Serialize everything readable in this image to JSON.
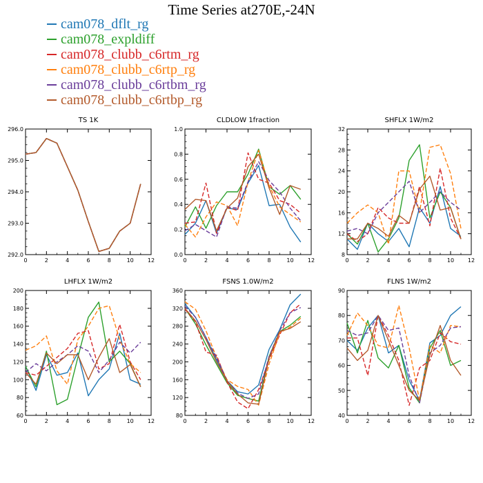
{
  "title": "Time Series at270E,-24N",
  "series_info": [
    {
      "name": "cam078_dflt_rg",
      "color": "#1f77b4"
    },
    {
      "name": "cam078_expldiff",
      "color": "#2ca02c"
    },
    {
      "name": "cam078_clubb_c6rtm_rg",
      "color": "#d62728",
      "dash": true
    },
    {
      "name": "cam078_clubb_c6rtp_rg",
      "color": "#ff7f0e",
      "dash": true
    },
    {
      "name": "cam078_clubb_c6rtbm_rg",
      "color": "#6a3d9a",
      "dash": true
    },
    {
      "name": "cam078_clubb_c6rtbp_rg",
      "color": "#b35a2b"
    }
  ],
  "chart_data": [
    {
      "type": "line",
      "title": "TS   1K",
      "x": [
        0,
        1,
        2,
        3,
        4,
        5,
        6,
        7,
        8,
        9,
        10,
        11
      ],
      "xlim": [
        0,
        12
      ],
      "xticks": [
        0,
        2,
        4,
        6,
        8,
        10,
        12
      ],
      "ylim": [
        292.0,
        296.0
      ],
      "yticks": [
        292.0,
        293.0,
        294.0,
        295.0,
        296.0
      ],
      "ytick_labels": [
        "292.0",
        "293.0",
        "294.0",
        "295.0",
        "296.0"
      ],
      "series": [
        {
          "name": "cam078_dflt_rg",
          "values": [
            295.2,
            295.25,
            295.7,
            295.55,
            294.8,
            294.05,
            293.05,
            292.1,
            292.2,
            292.75,
            293.0,
            294.25
          ]
        },
        {
          "name": "cam078_expldiff",
          "values": [
            295.2,
            295.25,
            295.7,
            295.55,
            294.8,
            294.05,
            293.05,
            292.1,
            292.2,
            292.75,
            293.0,
            294.25
          ]
        },
        {
          "name": "cam078_clubb_c6rtm_rg",
          "values": [
            295.2,
            295.25,
            295.7,
            295.55,
            294.8,
            294.05,
            293.05,
            292.1,
            292.2,
            292.75,
            293.0,
            294.25
          ]
        },
        {
          "name": "cam078_clubb_c6rtp_rg",
          "values": [
            295.2,
            295.25,
            295.7,
            295.55,
            294.8,
            294.05,
            293.05,
            292.1,
            292.2,
            292.75,
            293.0,
            294.25
          ]
        },
        {
          "name": "cam078_clubb_c6rtbm_rg",
          "values": [
            295.2,
            295.25,
            295.7,
            295.55,
            294.8,
            294.05,
            293.05,
            292.1,
            292.2,
            292.75,
            293.0,
            294.25
          ]
        },
        {
          "name": "cam078_clubb_c6rtbp_rg",
          "values": [
            295.2,
            295.25,
            295.7,
            295.55,
            294.8,
            294.05,
            293.05,
            292.1,
            292.2,
            292.75,
            293.0,
            294.25
          ]
        }
      ]
    },
    {
      "type": "line",
      "title": "CLDLOW   1fraction",
      "x": [
        0,
        1,
        2,
        3,
        4,
        5,
        6,
        7,
        8,
        9,
        10,
        11
      ],
      "xlim": [
        0,
        12
      ],
      "xticks": [
        0,
        2,
        4,
        6,
        8,
        10,
        12
      ],
      "ylim": [
        0.0,
        1.0
      ],
      "yticks": [
        0.0,
        0.2,
        0.4,
        0.6,
        0.8,
        1.0
      ],
      "ytick_labels": [
        "0.0",
        "0.2",
        "0.4",
        "0.6",
        "0.8",
        "1.0"
      ],
      "series": [
        {
          "name": "cam078_dflt_rg",
          "values": [
            0.16,
            0.25,
            0.43,
            0.17,
            0.37,
            0.36,
            0.57,
            0.71,
            0.39,
            0.4,
            0.22,
            0.1
          ]
        },
        {
          "name": "cam078_expldiff",
          "values": [
            0.22,
            0.38,
            0.21,
            0.39,
            0.5,
            0.5,
            0.64,
            0.84,
            0.54,
            0.48,
            0.55,
            0.44
          ]
        },
        {
          "name": "cam078_clubb_c6rtm_rg",
          "values": [
            0.25,
            0.26,
            0.57,
            0.17,
            0.38,
            0.35,
            0.81,
            0.6,
            0.57,
            0.43,
            0.4,
            0.33
          ]
        },
        {
          "name": "cam078_clubb_c6rtp_rg",
          "values": [
            0.24,
            0.14,
            0.3,
            0.42,
            0.39,
            0.23,
            0.58,
            0.83,
            0.55,
            0.38,
            0.32,
            0.26
          ]
        },
        {
          "name": "cam078_clubb_c6rtbm_rg",
          "values": [
            0.19,
            0.24,
            0.19,
            0.14,
            0.38,
            0.37,
            0.58,
            0.74,
            0.59,
            0.5,
            0.37,
            0.27
          ]
        },
        {
          "name": "cam078_clubb_c6rtbp_rg",
          "values": [
            0.36,
            0.44,
            0.43,
            0.19,
            0.37,
            0.45,
            0.7,
            0.8,
            0.53,
            0.32,
            0.55,
            0.52
          ]
        }
      ]
    },
    {
      "type": "line",
      "title": "SHFLX   1W/m2",
      "x": [
        0,
        1,
        2,
        3,
        4,
        5,
        6,
        7,
        8,
        9,
        10,
        11
      ],
      "xlim": [
        0,
        12
      ],
      "xticks": [
        0,
        2,
        4,
        6,
        8,
        10,
        12
      ],
      "ylim": [
        8,
        32
      ],
      "yticks": [
        8,
        12,
        16,
        20,
        24,
        28,
        32
      ],
      "ytick_labels": [
        "8",
        "12",
        "16",
        "20",
        "24",
        "28",
        "32"
      ],
      "series": [
        {
          "name": "cam078_dflt_rg",
          "values": [
            11,
            9,
            14,
            12,
            10.5,
            13,
            9.5,
            17,
            14,
            21,
            13,
            11.5
          ]
        },
        {
          "name": "cam078_expldiff",
          "values": [
            12,
            10,
            14,
            8.5,
            11,
            15,
            26,
            29,
            15,
            20,
            17,
            11
          ]
        },
        {
          "name": "cam078_clubb_c6rtm_rg",
          "values": [
            12,
            10.5,
            12,
            17,
            15,
            14,
            14,
            21,
            13.5,
            24.5,
            15,
            11
          ]
        },
        {
          "name": "cam078_clubb_c6rtp_rg",
          "values": [
            14,
            16,
            17.5,
            16,
            10,
            24,
            24,
            16,
            28.5,
            29,
            23.5,
            13
          ]
        },
        {
          "name": "cam078_clubb_c6rtbm_rg",
          "values": [
            12.5,
            13,
            12,
            16,
            18,
            20,
            22,
            16,
            18,
            20,
            18,
            16.5
          ]
        },
        {
          "name": "cam078_clubb_c6rtbp_rg",
          "values": [
            11,
            11,
            14,
            13,
            11.5,
            15.5,
            14,
            20.5,
            23,
            16.5,
            17,
            11
          ]
        }
      ]
    },
    {
      "type": "line",
      "title": "LHFLX   1W/m2",
      "x": [
        0,
        1,
        2,
        3,
        4,
        5,
        6,
        7,
        8,
        9,
        10,
        11
      ],
      "xlim": [
        0,
        12
      ],
      "xticks": [
        0,
        2,
        4,
        6,
        8,
        10,
        12
      ],
      "ylim": [
        60,
        200
      ],
      "yticks": [
        60,
        80,
        100,
        120,
        140,
        160,
        180,
        200
      ],
      "ytick_labels": [
        "60",
        "80",
        "100",
        "120",
        "140",
        "160",
        "180",
        "200"
      ],
      "series": [
        {
          "name": "cam078_dflt_rg",
          "values": [
            115,
            88,
            128,
            105,
            108,
            130,
            82,
            100,
            112,
            152,
            100,
            95
          ]
        },
        {
          "name": "cam078_expldiff",
          "values": [
            115,
            92,
            132,
            72,
            78,
            125,
            170,
            187,
            120,
            132,
            118,
            92
          ]
        },
        {
          "name": "cam078_clubb_c6rtm_rg",
          "values": [
            108,
            105,
            115,
            125,
            135,
            152,
            155,
            112,
            118,
            162,
            120,
            100
          ]
        },
        {
          "name": "cam078_clubb_c6rtp_rg",
          "values": [
            133,
            138,
            149,
            110,
            95,
            145,
            160,
            180,
            183,
            145,
            118,
            108
          ]
        },
        {
          "name": "cam078_clubb_c6rtbm_rg",
          "values": [
            108,
            118,
            110,
            120,
            128,
            138,
            132,
            108,
            122,
            142,
            130,
            142
          ]
        },
        {
          "name": "cam078_clubb_c6rtbp_rg",
          "values": [
            108,
            95,
            130,
            118,
            128,
            128,
            100,
            125,
            146,
            108,
            117,
            92
          ]
        }
      ]
    },
    {
      "type": "line",
      "title": "FSNS   1.0W/m2",
      "x": [
        0,
        1,
        2,
        3,
        4,
        5,
        6,
        7,
        8,
        9,
        10,
        11
      ],
      "xlim": [
        0,
        12
      ],
      "xticks": [
        0,
        2,
        4,
        6,
        8,
        10,
        12
      ],
      "ylim": [
        80,
        360
      ],
      "yticks": [
        80,
        120,
        160,
        200,
        240,
        280,
        320,
        360
      ],
      "ytick_labels": [
        "80",
        "120",
        "160",
        "200",
        "240",
        "280",
        "320",
        "360"
      ],
      "series": [
        {
          "name": "cam078_dflt_rg",
          "values": [
            330,
            300,
            255,
            205,
            158,
            133,
            128,
            148,
            228,
            272,
            328,
            352
          ]
        },
        {
          "name": "cam078_expldiff",
          "values": [
            320,
            285,
            238,
            195,
            153,
            125,
            118,
            112,
            212,
            268,
            282,
            302
          ]
        },
        {
          "name": "cam078_clubb_c6rtm_rg",
          "values": [
            318,
            290,
            222,
            215,
            155,
            110,
            95,
            138,
            205,
            260,
            310,
            330
          ]
        },
        {
          "name": "cam078_clubb_c6rtp_rg",
          "values": [
            335,
            318,
            270,
            210,
            160,
            145,
            138,
            103,
            195,
            265,
            278,
            298
          ]
        },
        {
          "name": "cam078_clubb_c6rtbm_rg",
          "values": [
            325,
            300,
            255,
            210,
            158,
            130,
            118,
            128,
            212,
            270,
            310,
            322
          ]
        },
        {
          "name": "cam078_clubb_c6rtbp_rg",
          "values": [
            320,
            292,
            250,
            200,
            157,
            128,
            108,
            105,
            208,
            268,
            275,
            290
          ]
        }
      ]
    },
    {
      "type": "line",
      "title": "FLNS   1W/m2",
      "x": [
        0,
        1,
        2,
        3,
        4,
        5,
        6,
        7,
        8,
        9,
        10,
        11
      ],
      "xlim": [
        0,
        12
      ],
      "xticks": [
        0,
        2,
        4,
        6,
        8,
        10,
        12
      ],
      "ylim": [
        40,
        90
      ],
      "yticks": [
        40,
        50,
        60,
        70,
        80,
        90
      ],
      "ytick_labels": [
        "40",
        "50",
        "60",
        "70",
        "80",
        "90"
      ],
      "series": [
        {
          "name": "cam078_dflt_rg",
          "values": [
            70,
            66,
            75,
            80,
            65,
            68,
            54,
            46,
            69,
            72,
            80,
            83.5
          ]
        },
        {
          "name": "cam078_expldiff",
          "values": [
            77,
            65,
            78,
            63,
            59,
            68,
            51,
            45,
            67,
            74,
            60,
            62
          ]
        },
        {
          "name": "cam078_clubb_c6rtm_rg",
          "values": [
            71,
            71,
            56,
            80,
            72,
            62,
            44,
            59,
            62,
            73,
            69.5,
            68.5
          ]
        },
        {
          "name": "cam078_clubb_c6rtp_rg",
          "values": [
            72,
            81,
            76,
            68,
            67,
            84,
            67,
            46,
            68,
            65,
            76,
            75.5
          ]
        },
        {
          "name": "cam078_clubb_c6rtbm_rg",
          "values": [
            74,
            72,
            73,
            80,
            74,
            75,
            56,
            45,
            65,
            68,
            75,
            75.5
          ]
        },
        {
          "name": "cam078_clubb_c6rtbp_rg",
          "values": [
            67,
            62,
            66,
            80,
            70,
            60,
            50,
            46,
            64,
            76,
            62,
            56
          ]
        }
      ]
    }
  ]
}
